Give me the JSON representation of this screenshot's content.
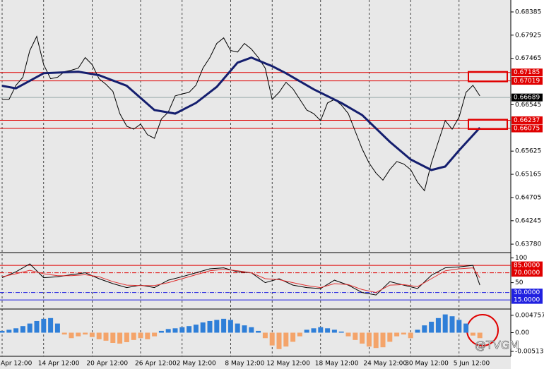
{
  "chart_data": [
    {
      "type": "line",
      "categories": [
        "Apr 12:00",
        null,
        null,
        null,
        null,
        null,
        "14 Apr 12:00",
        null,
        null,
        null,
        null,
        null,
        null,
        "20 Apr 12:00",
        null,
        null,
        null,
        null,
        null,
        null,
        "26 Apr 12:00",
        null,
        null,
        null,
        null,
        null,
        "2 May 12:00",
        null,
        null,
        null,
        null,
        null,
        null,
        "8 May 12:00",
        null,
        null,
        null,
        null,
        null,
        "12 May 12:00",
        null,
        null,
        null,
        null,
        null,
        null,
        "18 May 12:00",
        null,
        null,
        null,
        null,
        null,
        null,
        "24 May 12:00",
        null,
        null,
        null,
        null,
        null,
        "30 May 12:00",
        null,
        null,
        null,
        null,
        null,
        null,
        "5 Jun 12:00",
        null,
        null,
        null
      ],
      "series": [
        {
          "color": "#000000",
          "values": [
            0.6665,
            0.6665,
            0.6693,
            0.6709,
            0.6762,
            0.679,
            0.6734,
            0.6706,
            0.6709,
            0.672,
            0.6723,
            0.6727,
            0.6748,
            0.6734,
            0.6706,
            0.6695,
            0.6681,
            0.6637,
            0.6612,
            0.6606,
            0.6616,
            0.6595,
            0.6588,
            0.6626,
            0.664,
            0.6672,
            0.6676,
            0.6679,
            0.6693,
            0.6727,
            0.6748,
            0.6776,
            0.6787,
            0.6762,
            0.6759,
            0.6776,
            0.6765,
            0.6748,
            0.6727,
            0.6665,
            0.6679,
            0.6699,
            0.6686,
            0.6665,
            0.6644,
            0.6637,
            0.6623,
            0.6658,
            0.6665,
            0.6654,
            0.6637,
            0.6602,
            0.6567,
            0.6539,
            0.6519,
            0.6505,
            0.6526,
            0.6542,
            0.6537,
            0.6526,
            0.6501,
            0.6484,
            0.6539,
            0.6581,
            0.6623,
            0.6606,
            0.663,
            0.6679,
            0.6693,
            0.6672
          ]
        },
        {
          "color": "#141e6e",
          "x": [
            0,
            2,
            6,
            11,
            14,
            18,
            22,
            25,
            28,
            31,
            34,
            36,
            39,
            41,
            45,
            49,
            52,
            56,
            59,
            62,
            64,
            66,
            69
          ],
          "values": [
            0.6692,
            0.6687,
            0.6717,
            0.672,
            0.6713,
            0.6692,
            0.6644,
            0.6637,
            0.6658,
            0.669,
            0.6738,
            0.6748,
            0.6731,
            0.6717,
            0.6685,
            0.6658,
            0.6634,
            0.6581,
            0.6546,
            0.6525,
            0.6532,
            0.6564,
            0.6609
          ]
        }
      ],
      "ylim": [
        0.63627,
        0.68594
      ],
      "yticks": [
        0.68385,
        0.67925,
        0.67465,
        0.66545,
        0.65625,
        0.65165,
        0.64705,
        0.64245,
        {
          "value": 0.6378,
          "label": "0.63780"
        }
      ],
      "levels": [
        {
          "value": 0.67185,
          "color": "#e00000"
        },
        {
          "value": 0.67019,
          "color": "#e00000"
        },
        {
          "value": 0.66689,
          "color": "#000000"
        },
        {
          "value": 0.66237,
          "color": "#e00000"
        },
        {
          "value": 0.66075,
          "color": "#e00000"
        }
      ]
    },
    {
      "type": "line",
      "series": [
        {
          "color": "#000000",
          "x": [
            0,
            2,
            4,
            6,
            8,
            10,
            12,
            14,
            16,
            18,
            20,
            22,
            24,
            26,
            28,
            30,
            32,
            34,
            36,
            38,
            40,
            42,
            44,
            46,
            48,
            50,
            52,
            54,
            56,
            58,
            60,
            62,
            64,
            66,
            68,
            69
          ],
          "values": [
            60,
            72,
            88,
            60,
            62,
            66,
            70,
            58,
            48,
            40,
            45,
            40,
            55,
            62,
            70,
            78,
            80,
            72,
            70,
            50,
            58,
            45,
            40,
            38,
            55,
            45,
            30,
            25,
            52,
            45,
            38,
            65,
            80,
            82,
            85,
            45
          ]
        },
        {
          "color": "#e03030",
          "x": [
            0,
            2,
            4,
            6,
            8,
            10,
            12,
            14,
            16,
            18,
            20,
            22,
            24,
            26,
            28,
            30,
            32,
            34,
            36,
            38,
            40,
            42,
            44,
            46,
            48,
            50,
            52,
            54,
            56,
            58,
            60,
            62,
            64,
            66,
            68,
            69
          ],
          "values": [
            62,
            68,
            75,
            68,
            64,
            64,
            66,
            62,
            52,
            45,
            44,
            44,
            50,
            58,
            66,
            74,
            77,
            74,
            70,
            58,
            56,
            50,
            44,
            40,
            48,
            46,
            36,
            30,
            45,
            46,
            42,
            58,
            74,
            78,
            80,
            60
          ]
        }
      ],
      "ylim": [
        -2,
        108
      ],
      "yticks": [
        100,
        50
      ],
      "levels": [
        {
          "value": 85,
          "label": "85.0000",
          "color": "#e00000"
        },
        {
          "value": 70,
          "label": "70.0000",
          "color": "#e00000"
        },
        {
          "value": 30,
          "label": "30.0000",
          "color": "#2020e0"
        },
        {
          "value": 15,
          "label": "15.0000",
          "color": "#2020e0"
        }
      ]
    },
    {
      "type": "bar",
      "pos_color": "#2f7fd8",
      "neg_color": "#f4a46a",
      "values": [
        0.0005,
        0.0008,
        0.0012,
        0.0018,
        0.0025,
        0.0032,
        0.0038,
        0.004,
        0.0025,
        -0.0005,
        -0.0015,
        -0.001,
        -0.0005,
        -0.0012,
        -0.0018,
        -0.0022,
        -0.0028,
        -0.003,
        -0.0026,
        -0.002,
        -0.0015,
        -0.0018,
        -0.001,
        0.0005,
        0.001,
        0.0012,
        0.0015,
        0.0018,
        0.0022,
        0.0028,
        0.0032,
        0.0035,
        0.0038,
        0.0035,
        0.0025,
        0.002,
        0.0015,
        0.0005,
        -0.0015,
        -0.0035,
        -0.0045,
        -0.0038,
        -0.0025,
        -0.001,
        0.0008,
        0.0012,
        0.0015,
        0.0012,
        0.0008,
        0.0003,
        -0.001,
        -0.002,
        -0.003,
        -0.0038,
        -0.0042,
        -0.004,
        -0.0025,
        -0.001,
        -0.0005,
        -0.0015,
        0.0008,
        0.002,
        0.003,
        0.004,
        0.005,
        0.0045,
        0.0035,
        0.0025,
        -0.0008,
        -0.0015
      ],
      "ylim": [
        -0.00628,
        0.00609
      ],
      "yticks": [
        0.0047571,
        {
          "value": 0,
          "label": "0.00"
        },
        -0.00513
      ]
    }
  ],
  "watermark": "@TVGM"
}
